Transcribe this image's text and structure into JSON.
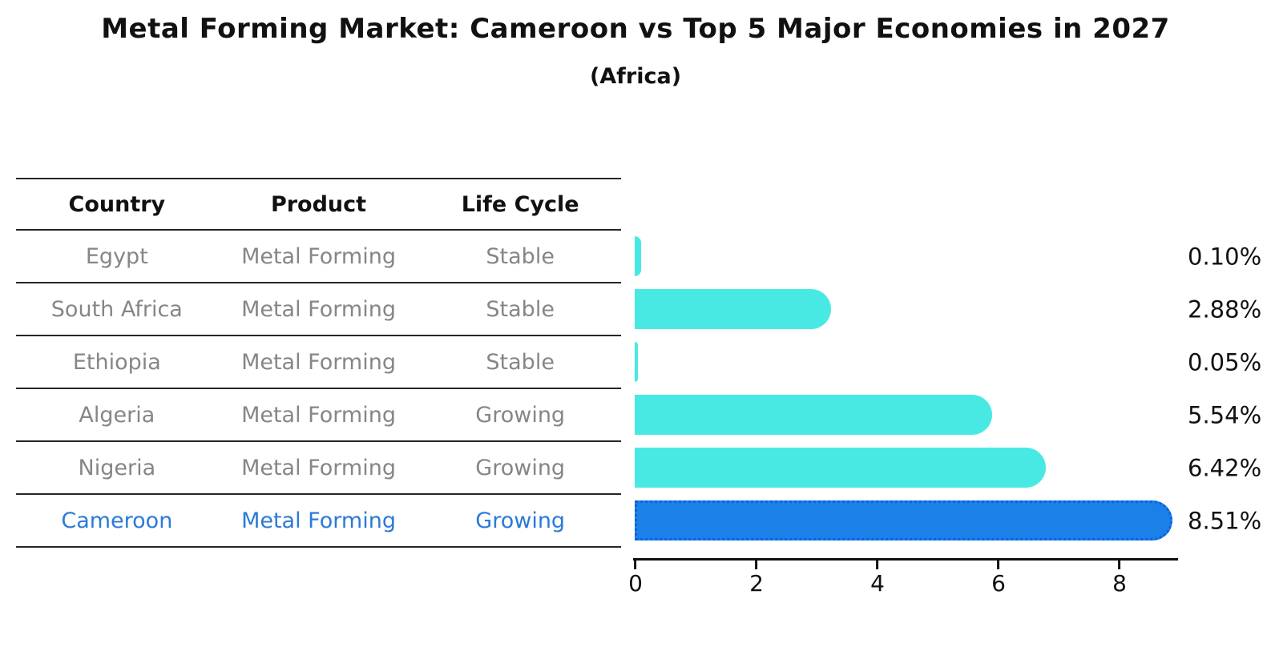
{
  "title": "Metal Forming Market: Cameroon vs Top 5 Major Economies in 2027",
  "subtitle": "(Africa)",
  "table": {
    "headers": [
      "Country",
      "Product",
      "Life Cycle"
    ],
    "rows": [
      {
        "country": "Egypt",
        "product": "Metal Forming",
        "life_cycle": "Stable"
      },
      {
        "country": "South Africa",
        "product": "Metal Forming",
        "life_cycle": "Stable"
      },
      {
        "country": "Ethiopia",
        "product": "Metal Forming",
        "life_cycle": "Stable"
      },
      {
        "country": "Algeria",
        "product": "Metal Forming",
        "life_cycle": "Growing"
      },
      {
        "country": "Nigeria",
        "product": "Metal Forming",
        "life_cycle": "Growing"
      },
      {
        "country": "Cameroon",
        "product": "Metal Forming",
        "life_cycle": "Growing"
      }
    ],
    "highlighted_row": "Cameroon"
  },
  "chart_data": {
    "type": "bar",
    "orientation": "horizontal",
    "title": "Metal Forming Market: Cameroon vs Top 5 Major Economies in 2027 (Africa)",
    "categories": [
      "Egypt",
      "South Africa",
      "Ethiopia",
      "Algeria",
      "Nigeria",
      "Cameroon"
    ],
    "values": [
      0.1,
      2.88,
      0.05,
      5.54,
      6.42,
      8.51
    ],
    "value_labels": [
      "0.10%",
      "2.88%",
      "0.05%",
      "5.54%",
      "6.42%",
      "8.51%"
    ],
    "x_ticks": [
      "0",
      "2",
      "4",
      "6",
      "8"
    ],
    "x_tick_values": [
      0,
      2,
      4,
      6,
      8
    ],
    "xlim": [
      0,
      9
    ],
    "xlabel": "",
    "ylabel": "",
    "grid": false,
    "legend": false,
    "bar_color": "#48E9E3",
    "highlight_index": 5,
    "highlight_color": "#1B80E8",
    "highlight_border_color": "#0D62D9"
  },
  "colors": {
    "background": "#FFFFFF",
    "title_text": "#111111",
    "table_header_text": "#111111",
    "table_row_text": "#868686",
    "highlight_text": "#2B7AD8",
    "table_line": "#262626",
    "axis": "#111111"
  }
}
